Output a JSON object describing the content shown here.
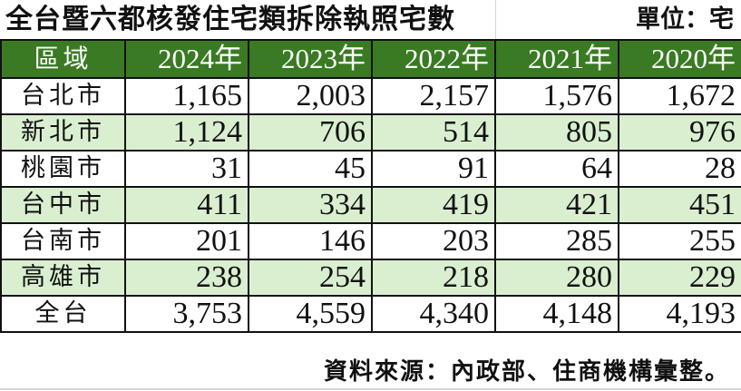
{
  "title": "全台暨六都核發住宅類拆除執照宅數",
  "unit": "單位：宅",
  "table": {
    "headers": [
      "區域",
      "2024年",
      "2023年",
      "2022年",
      "2021年",
      "2020年"
    ],
    "rows": [
      {
        "region": "台北市",
        "values": [
          "1,165",
          "2,003",
          "2,157",
          "1,576",
          "1,672"
        ]
      },
      {
        "region": "新北市",
        "values": [
          "1,124",
          "706",
          "514",
          "805",
          "976"
        ]
      },
      {
        "region": "桃園市",
        "values": [
          "31",
          "45",
          "91",
          "64",
          "28"
        ]
      },
      {
        "region": "台中市",
        "values": [
          "411",
          "334",
          "419",
          "421",
          "451"
        ]
      },
      {
        "region": "台南市",
        "values": [
          "201",
          "146",
          "203",
          "285",
          "255"
        ]
      },
      {
        "region": "高雄市",
        "values": [
          "238",
          "254",
          "218",
          "280",
          "229"
        ]
      },
      {
        "region": "全台",
        "values": [
          "3,753",
          "4,559",
          "4,340",
          "4,148",
          "4,193"
        ]
      }
    ]
  },
  "source": "資料來源：內政部、住商機構彙整。",
  "colors": {
    "header_bg": "#3a7a24",
    "header_text": "#ffffff",
    "alt_row_bg": "#d9efd0",
    "border": "#111111"
  }
}
